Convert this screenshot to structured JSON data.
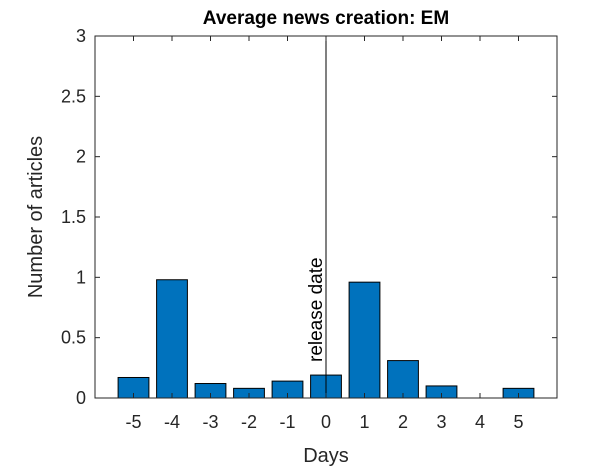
{
  "chart_data": {
    "type": "bar",
    "title": "Average news creation: EM",
    "xlabel": "Days",
    "ylabel": "Number of articles",
    "categories": [
      "-5",
      "-4",
      "-3",
      "-2",
      "-1",
      "0",
      "1",
      "2",
      "3",
      "4",
      "5"
    ],
    "x": [
      -5,
      -4,
      -3,
      -2,
      -1,
      0,
      1,
      2,
      3,
      4,
      5
    ],
    "values": [
      0.17,
      0.98,
      0.12,
      0.08,
      0.14,
      0.19,
      0.96,
      0.31,
      0.1,
      0.0,
      0.08
    ],
    "xlim": [
      -6,
      6
    ],
    "ylim": [
      0,
      3
    ],
    "yticks": [
      0,
      0.5,
      1,
      1.5,
      2,
      2.5,
      3
    ],
    "ytick_labels": [
      "0",
      "0.5",
      "1",
      "1.5",
      "2",
      "2.5",
      "3"
    ],
    "grid": false,
    "bar_color": "#0072bd",
    "annotation": {
      "text": "release date",
      "x": 0
    }
  }
}
